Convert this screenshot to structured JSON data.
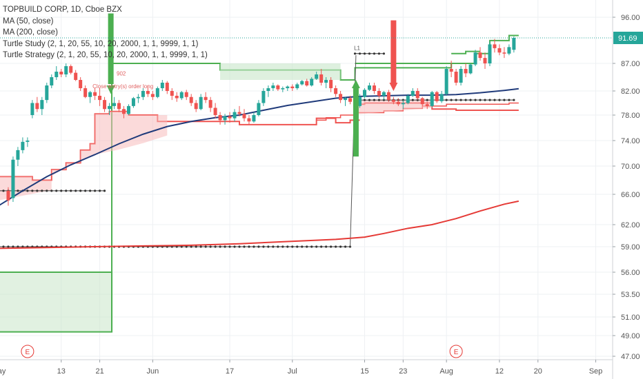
{
  "legend": {
    "symbol": "TOPBUILD CORP, 1D, Cboe BZX",
    "ma50": "MA (50, close)",
    "ma200": "MA (200, close)",
    "study": "Turtle Study (2, 1, 20, 55, 10, 20, 2000, 1, 1, 9999, 1, 1)",
    "strategy": "Turtle Strategy (2, 1, 20, 55, 10, 20, 2000, 1, 1, 9999, 1, 1)"
  },
  "last_price": "91.69",
  "colors": {
    "up": "#26a69a",
    "down": "#ef5350",
    "ma50": "#1f3a7a",
    "ma200": "#e53935",
    "green_channel": "#4caf50",
    "red_channel": "#ef5350",
    "price_line": "#26a69a"
  },
  "annotations": {
    "order_label": "Close entry(s) order long",
    "order_price": "902",
    "entry_label": "L1"
  },
  "earnings_marks": [
    "E",
    "E"
  ],
  "chart_data": {
    "type": "candlestick",
    "yaxis": {
      "ticks": [
        47.0,
        49.0,
        51.0,
        53.5,
        56.0,
        59.0,
        62.0,
        66.0,
        70.0,
        74.0,
        78.0,
        82.0,
        87.0,
        91.69,
        96.0
      ],
      "tick_labels": [
        "47.00",
        "49.00",
        "51.00",
        "53.50",
        "56.00",
        "59.00",
        "62.00",
        "66.00",
        "70.00",
        "74.00",
        "78.00",
        "82.00",
        "87.00",
        "91.69",
        "96.00"
      ]
    },
    "xaxis": {
      "tick_labels": [
        "May",
        "13",
        "21",
        "Jun",
        "17",
        "Jul",
        "15",
        "23",
        "Aug",
        "12",
        "20",
        "Sep"
      ],
      "tick_days": [
        0,
        13,
        21,
        32,
        48,
        61,
        76,
        84,
        93,
        104,
        112,
        124
      ]
    },
    "candles": [
      [
        2,
        66.5,
        67.0,
        64.5,
        65.2
      ],
      [
        3,
        65.5,
        71.5,
        65.0,
        71.0
      ],
      [
        4,
        71.0,
        73.0,
        70.0,
        72.5
      ],
      [
        5,
        72.5,
        74.5,
        72.0,
        73.8
      ],
      [
        6,
        73.8,
        74.5,
        73.0,
        74.0
      ],
      [
        7,
        78.0,
        80.5,
        77.5,
        80.0
      ],
      [
        8,
        80.0,
        81.0,
        78.5,
        79.0
      ],
      [
        9,
        79.0,
        81.0,
        78.0,
        80.5
      ],
      [
        10,
        80.5,
        83.5,
        80.0,
        83.0
      ],
      [
        11,
        83.0,
        85.0,
        82.5,
        84.5
      ],
      [
        12,
        84.5,
        86.5,
        84.0,
        85.5
      ],
      [
        13,
        85.5,
        86.0,
        84.5,
        85.0
      ],
      [
        14,
        85.0,
        87.0,
        84.5,
        86.5
      ],
      [
        15,
        86.5,
        86.8,
        85.0,
        85.3
      ],
      [
        16,
        85.3,
        85.8,
        83.8,
        84.0
      ],
      [
        17,
        84.0,
        84.5,
        82.0,
        82.5
      ],
      [
        18,
        82.5,
        83.0,
        80.8,
        81.0
      ],
      [
        19,
        81.0,
        82.0,
        80.0,
        81.8
      ],
      [
        20,
        81.8,
        82.5,
        80.5,
        81.2
      ],
      [
        21,
        81.2,
        82.5,
        79.5,
        80.5
      ],
      [
        22,
        80.5,
        81.0,
        78.5,
        79.0
      ],
      [
        23,
        79.0,
        80.0,
        78.0,
        79.5
      ],
      [
        24,
        79.5,
        81.0,
        79.0,
        80.0
      ],
      [
        25,
        80.0,
        80.5,
        78.5,
        79.0
      ],
      [
        26,
        79.0,
        79.5,
        77.5,
        78.2
      ],
      [
        27,
        78.2,
        79.8,
        78.0,
        79.5
      ],
      [
        28,
        79.5,
        81.0,
        79.2,
        80.8
      ],
      [
        29,
        80.8,
        81.5,
        80.0,
        81.0
      ],
      [
        30,
        81.0,
        82.5,
        80.5,
        82.0
      ],
      [
        31,
        82.0,
        83.0,
        81.0,
        81.5
      ],
      [
        32,
        81.5,
        82.0,
        80.5,
        81.0
      ],
      [
        33,
        81.0,
        82.8,
        80.8,
        82.5
      ],
      [
        34,
        82.5,
        84.0,
        82.0,
        83.5
      ],
      [
        35,
        83.5,
        83.8,
        81.5,
        82.0
      ],
      [
        36,
        82.0,
        82.5,
        80.5,
        81.2
      ],
      [
        37,
        81.2,
        81.8,
        80.2,
        80.8
      ],
      [
        38,
        80.8,
        82.0,
        80.5,
        81.8
      ],
      [
        39,
        81.8,
        82.2,
        80.5,
        81.0
      ],
      [
        40,
        81.0,
        81.5,
        79.5,
        80.0
      ],
      [
        41,
        80.0,
        80.5,
        78.5,
        79.0
      ],
      [
        42,
        79.0,
        81.5,
        78.8,
        81.0
      ],
      [
        43,
        81.0,
        81.8,
        80.0,
        80.5
      ],
      [
        44,
        80.5,
        81.0,
        78.5,
        79.2
      ],
      [
        45,
        79.2,
        80.0,
        77.5,
        78.0
      ],
      [
        46,
        78.0,
        78.5,
        76.5,
        77.2
      ],
      [
        47,
        77.2,
        78.2,
        76.5,
        77.8
      ],
      [
        48,
        77.8,
        78.5,
        76.8,
        77.5
      ],
      [
        49,
        77.5,
        79.0,
        77.0,
        78.5
      ],
      [
        50,
        78.5,
        79.5,
        77.8,
        78.2
      ],
      [
        51,
        78.2,
        79.0,
        77.0,
        77.5
      ],
      [
        52,
        77.5,
        78.0,
        76.5,
        77.0
      ],
      [
        53,
        77.0,
        78.5,
        76.8,
        78.0
      ],
      [
        54,
        78.0,
        80.5,
        77.8,
        80.0
      ],
      [
        55,
        80.0,
        82.5,
        79.5,
        82.0
      ],
      [
        56,
        82.0,
        83.0,
        81.0,
        82.5
      ],
      [
        57,
        82.5,
        83.5,
        82.0,
        83.0
      ],
      [
        58,
        83.0,
        83.2,
        82.0,
        82.3
      ],
      [
        59,
        82.3,
        82.8,
        81.8,
        82.5
      ],
      [
        60,
        82.5,
        83.0,
        82.0,
        82.8
      ],
      [
        61,
        82.8,
        83.2,
        82.0,
        82.5
      ],
      [
        62,
        82.5,
        83.5,
        82.2,
        83.2
      ],
      [
        63,
        83.2,
        84.0,
        83.0,
        83.8
      ],
      [
        64,
        83.8,
        84.2,
        82.8,
        83.0
      ],
      [
        65,
        83.0,
        84.5,
        82.8,
        84.2
      ],
      [
        66,
        84.2,
        85.5,
        84.0,
        85.0
      ],
      [
        67,
        85.0,
        86.0,
        83.0,
        83.5
      ],
      [
        68,
        83.5,
        84.5,
        82.5,
        84.0
      ],
      [
        69,
        84.0,
        84.5,
        81.8,
        82.5
      ],
      [
        70,
        82.5,
        83.0,
        81.0,
        81.5
      ],
      [
        71,
        81.5,
        82.0,
        80.0,
        80.5
      ],
      [
        72,
        80.5,
        81.0,
        79.5,
        80.8
      ],
      [
        73,
        80.8,
        81.2,
        79.8,
        80.2
      ],
      [
        74,
        80.2,
        80.5,
        79.0,
        79.5
      ],
      [
        75,
        79.5,
        81.5,
        79.2,
        81.0
      ],
      [
        76,
        81.0,
        82.5,
        80.8,
        82.2
      ],
      [
        77,
        82.2,
        83.5,
        82.0,
        83.0
      ],
      [
        78,
        83.0,
        83.5,
        81.5,
        82.0
      ],
      [
        79,
        82.0,
        82.5,
        80.8,
        81.2
      ],
      [
        80,
        81.2,
        82.0,
        80.5,
        81.8
      ],
      [
        81,
        81.8,
        82.2,
        80.2,
        80.5
      ],
      [
        82,
        80.5,
        81.0,
        79.8,
        80.2
      ],
      [
        83,
        80.2,
        80.8,
        79.5,
        79.8
      ],
      [
        84,
        79.8,
        80.5,
        79.0,
        80.0
      ],
      [
        85,
        80.0,
        81.5,
        79.8,
        81.2
      ],
      [
        86,
        81.2,
        82.5,
        81.0,
        82.0
      ],
      [
        87,
        82.0,
        82.5,
        80.5,
        80.8
      ],
      [
        88,
        80.8,
        81.0,
        79.5,
        79.8
      ],
      [
        89,
        79.8,
        80.2,
        79.0,
        79.5
      ],
      [
        90,
        79.5,
        82.0,
        79.3,
        81.8
      ],
      [
        91,
        81.8,
        82.0,
        80.0,
        80.3
      ],
      [
        92,
        80.3,
        82.0,
        80.0,
        81.5
      ],
      [
        93,
        81.5,
        86.5,
        81.2,
        86.0
      ],
      [
        94,
        86.0,
        87.5,
        84.5,
        85.5
      ],
      [
        95,
        85.5,
        86.0,
        83.0,
        83.5
      ],
      [
        96,
        83.5,
        86.5,
        83.0,
        86.0
      ],
      [
        97,
        86.0,
        87.0,
        84.5,
        85.2
      ],
      [
        98,
        85.2,
        87.0,
        85.0,
        86.8
      ],
      [
        99,
        86.8,
        89.5,
        86.5,
        89.0
      ],
      [
        100,
        89.0,
        90.0,
        87.5,
        88.0
      ],
      [
        101,
        88.0,
        89.0,
        86.0,
        87.0
      ],
      [
        102,
        87.0,
        91.0,
        86.5,
        90.5
      ],
      [
        103,
        90.5,
        91.5,
        89.0,
        89.8
      ],
      [
        104,
        89.8,
        90.5,
        88.5,
        89.0
      ],
      [
        105,
        89.0,
        90.0,
        88.0,
        88.8
      ],
      [
        106,
        88.8,
        90.5,
        88.5,
        90.0
      ],
      [
        107,
        89.5,
        92.0,
        89.0,
        91.69
      ]
    ],
    "series": [
      {
        "name": "MA (50, close)",
        "points": [
          [
            0,
            64.5
          ],
          [
            5,
            66.5
          ],
          [
            10,
            68.5
          ],
          [
            15,
            70.2
          ],
          [
            20,
            71.8
          ],
          [
            25,
            73.5
          ],
          [
            30,
            75.0
          ],
          [
            35,
            76.2
          ],
          [
            40,
            77.0
          ],
          [
            45,
            77.6
          ],
          [
            50,
            78.0
          ],
          [
            55,
            78.8
          ],
          [
            60,
            79.6
          ],
          [
            65,
            80.2
          ],
          [
            70,
            80.8
          ],
          [
            75,
            81.1
          ],
          [
            80,
            81.2
          ],
          [
            85,
            81.3
          ],
          [
            90,
            81.3
          ],
          [
            95,
            81.4
          ],
          [
            100,
            81.7
          ],
          [
            105,
            82.1
          ],
          [
            108,
            82.4
          ]
        ]
      },
      {
        "name": "MA (200, close)",
        "points": [
          [
            0,
            58.8
          ],
          [
            10,
            58.9
          ],
          [
            20,
            59.0
          ],
          [
            30,
            59.1
          ],
          [
            40,
            59.2
          ],
          [
            50,
            59.4
          ],
          [
            60,
            59.7
          ],
          [
            70,
            60.0
          ],
          [
            76,
            60.3
          ],
          [
            80,
            60.8
          ],
          [
            85,
            61.5
          ],
          [
            90,
            62.0
          ],
          [
            95,
            62.8
          ],
          [
            100,
            63.8
          ],
          [
            105,
            64.7
          ],
          [
            108,
            65.1
          ]
        ]
      }
    ],
    "last_price": 91.69
  }
}
